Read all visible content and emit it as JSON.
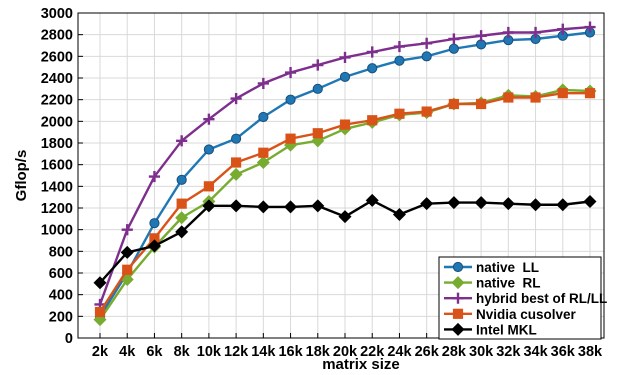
{
  "chart_data": {
    "type": "line",
    "title": "",
    "xlabel": "matrix size",
    "ylabel": "Gflop/s",
    "categories": [
      "2k",
      "4k",
      "6k",
      "8k",
      "10k",
      "12k",
      "14k",
      "16k",
      "18k",
      "20k",
      "22k",
      "24k",
      "26k",
      "28k",
      "30k",
      "32k",
      "34k",
      "36k",
      "38k"
    ],
    "ylim": [
      0,
      3000
    ],
    "yticks": [
      0,
      200,
      400,
      600,
      800,
      1000,
      1200,
      1400,
      1600,
      1800,
      2000,
      2200,
      2400,
      2600,
      2800,
      3000
    ],
    "grid": true,
    "legend_position": "bottom-right",
    "series": [
      {
        "name": "native  LL",
        "color": "#1f77b4",
        "marker": "circle",
        "values": [
          200,
          600,
          1060,
          1460,
          1740,
          1840,
          2040,
          2200,
          2300,
          2410,
          2490,
          2560,
          2600,
          2670,
          2710,
          2750,
          2760,
          2790,
          2820
        ]
      },
      {
        "name": "native  RL",
        "color": "#77ac30",
        "marker": "diamond",
        "values": [
          170,
          540,
          840,
          1110,
          1260,
          1510,
          1620,
          1780,
          1820,
          1930,
          1990,
          2060,
          2080,
          2160,
          2170,
          2240,
          2230,
          2290,
          2280
        ]
      },
      {
        "name": "hybrid best of RL/LL",
        "color": "#7e2f8e",
        "marker": "plus",
        "values": [
          310,
          1000,
          1490,
          1820,
          2020,
          2210,
          2350,
          2450,
          2520,
          2590,
          2640,
          2690,
          2720,
          2760,
          2790,
          2820,
          2820,
          2850,
          2870
        ]
      },
      {
        "name": "Nvidia cusolver",
        "color": "#d95319",
        "marker": "square",
        "values": [
          240,
          630,
          920,
          1240,
          1400,
          1620,
          1710,
          1840,
          1890,
          1970,
          2010,
          2070,
          2090,
          2160,
          2160,
          2220,
          2220,
          2260,
          2260
        ]
      },
      {
        "name": "Intel MKL",
        "color": "#000000",
        "marker": "diamond",
        "values": [
          510,
          790,
          850,
          980,
          1220,
          1220,
          1210,
          1210,
          1220,
          1120,
          1270,
          1140,
          1240,
          1250,
          1250,
          1240,
          1230,
          1230,
          1260
        ]
      }
    ]
  }
}
